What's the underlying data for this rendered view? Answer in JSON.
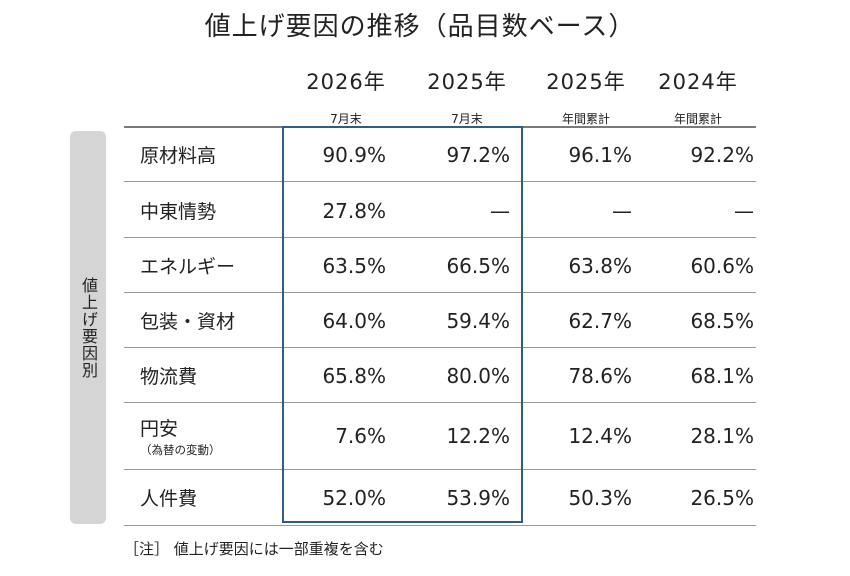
{
  "title": "値上げ要因の推移（品目数ベース）",
  "columns": [
    {
      "year": "2026年",
      "period": "7月末"
    },
    {
      "year": "2025年",
      "period": "7月末"
    },
    {
      "year": "2025年",
      "period": "年間累計"
    },
    {
      "year": "2024年",
      "period": "年間累計"
    }
  ],
  "side_label": "値上げ要因別",
  "rows": [
    {
      "label": "原材料高",
      "sub": "",
      "values": [
        "90.9%",
        "97.2%",
        "96.1%",
        "92.2%"
      ]
    },
    {
      "label": "中東情勢",
      "sub": "",
      "values": [
        "27.8%",
        "—",
        "—",
        "—"
      ]
    },
    {
      "label": "エネルギー",
      "sub": "",
      "values": [
        "63.5%",
        "66.5%",
        "63.8%",
        "60.6%"
      ]
    },
    {
      "label": "包装・資材",
      "sub": "",
      "values": [
        "64.0%",
        "59.4%",
        "62.7%",
        "68.5%"
      ]
    },
    {
      "label": "物流費",
      "sub": "",
      "values": [
        "65.8%",
        "80.0%",
        "78.6%",
        "68.1%"
      ]
    },
    {
      "label": "円安",
      "sub": "（為替の変動）",
      "values": [
        "7.6%",
        "12.2%",
        "12.4%",
        "28.1%"
      ]
    },
    {
      "label": "人件費",
      "sub": "",
      "values": [
        "52.0%",
        "53.9%",
        "50.3%",
        "26.5%"
      ]
    }
  ],
  "note": "［注］ 値上げ要因には一部重複を含む",
  "colors": {
    "highlight_border": "#2e5d8a",
    "side_label_bg": "#d5d5d5"
  }
}
